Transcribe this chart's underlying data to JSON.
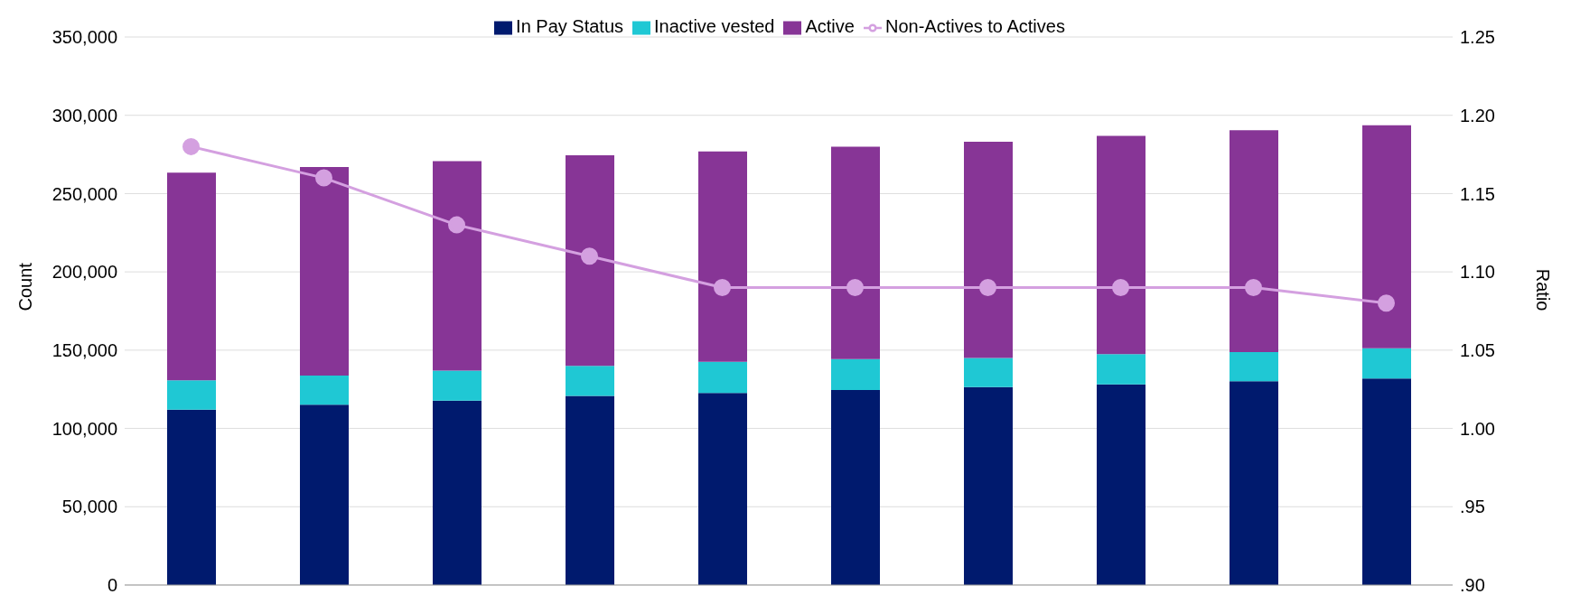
{
  "chart_data": {
    "type": "bar",
    "stacked": true,
    "categories": [
      null,
      null,
      null,
      null,
      null,
      null,
      null,
      null,
      null,
      null
    ],
    "series": [
      {
        "name": "In Pay Status",
        "color": "#001a6e",
        "values": [
          112000,
          115200,
          117700,
          120800,
          122700,
          124500,
          126400,
          128200,
          130100,
          131900
        ]
      },
      {
        "name": "Inactive vested",
        "color": "#1fc8d4",
        "values": [
          18700,
          18600,
          19200,
          19200,
          19800,
          19800,
          18600,
          19200,
          18600,
          19300
        ]
      },
      {
        "name": "Active",
        "color": "#873596",
        "values": [
          132600,
          133200,
          133800,
          134400,
          134400,
          135700,
          138100,
          139400,
          141800,
          142400
        ]
      },
      {
        "name": "Non-Actives to Actives",
        "type": "line",
        "axis": "y2",
        "color": "#d4a0e0",
        "marker": "circle",
        "values": [
          1.18,
          1.16,
          1.13,
          1.11,
          1.09,
          1.09,
          1.09,
          1.09,
          1.09,
          1.08
        ]
      }
    ],
    "ylabel": "Count",
    "y2label": "Ratio",
    "ylim": [
      0,
      350000
    ],
    "yticks": [
      0,
      {
        "value": 50000,
        "label": "50,000"
      },
      {
        "value": 100000,
        "label": "100,000"
      },
      {
        "value": 150000,
        "label": "150,000"
      },
      {
        "value": 200000,
        "label": "200,000"
      },
      {
        "value": 250000,
        "label": "250,000"
      },
      {
        "value": 300000,
        "label": "300,000"
      },
      {
        "value": 350000,
        "label": "350,000"
      }
    ],
    "y2lim": [
      0.9,
      1.25
    ],
    "y2ticks": [
      {
        "value": 0.9,
        "label": ".90"
      },
      {
        "value": 0.95,
        "label": ".95"
      },
      {
        "value": 1.0,
        "label": "1.00"
      },
      {
        "value": 1.05,
        "label": "1.05"
      },
      {
        "value": 1.1,
        "label": "1.10"
      },
      {
        "value": 1.15,
        "label": "1.15"
      },
      {
        "value": 1.2,
        "label": "1.20"
      },
      {
        "value": 1.25,
        "label": "1.25"
      }
    ],
    "grid": "y",
    "legend": "top"
  }
}
